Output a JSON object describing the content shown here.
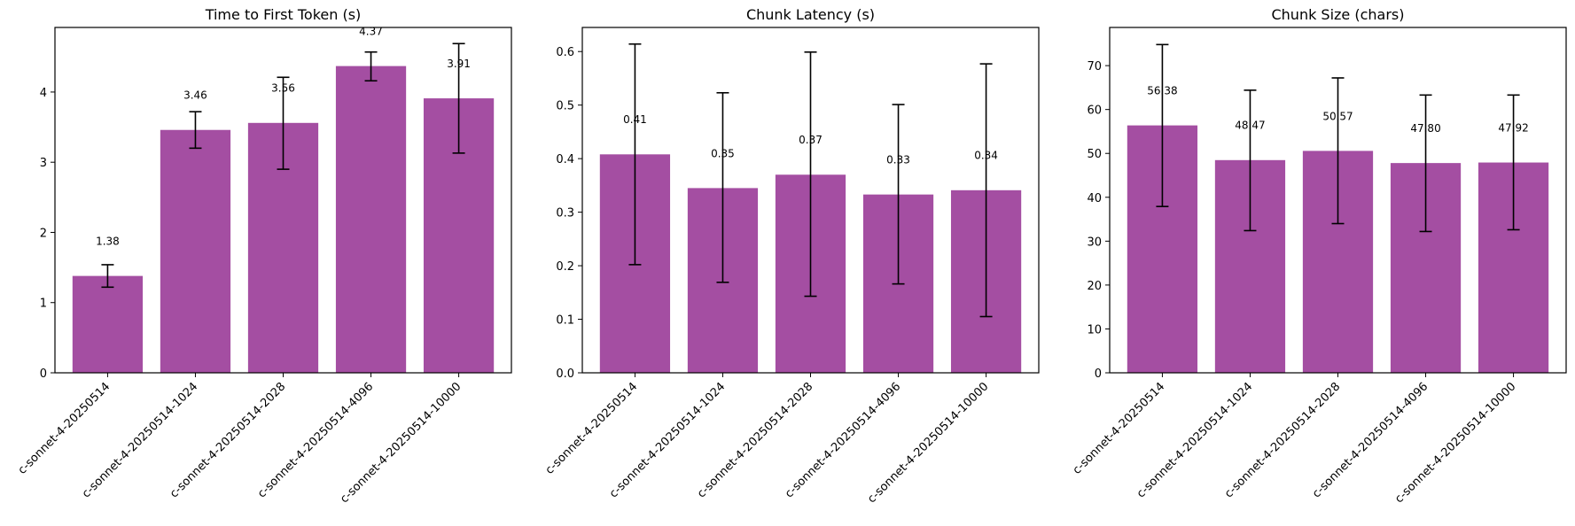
{
  "figure": {
    "bar_color": "#A44EA2",
    "error_color": "#000000"
  },
  "chart_data": [
    {
      "type": "bar",
      "title": "Time to First Token (s)",
      "xlabel": "",
      "ylabel": "",
      "categories": [
        "c-sonnet-4-20250514",
        "c-sonnet-4-20250514-1024",
        "c-sonnet-4-20250514-2028",
        "c-sonnet-4-20250514-4096",
        "c-sonnet-4-20250514-10000"
      ],
      "values": [
        1.38,
        3.46,
        3.56,
        4.37,
        3.91
      ],
      "value_labels": [
        "1.38",
        "3.46",
        "3.56",
        "4.37",
        "3.91"
      ],
      "error_low": [
        1.22,
        3.2,
        2.9,
        4.16,
        3.13
      ],
      "error_high": [
        1.54,
        3.72,
        4.21,
        4.57,
        4.69
      ],
      "ylim": [
        0,
        4.92
      ],
      "yticks": [
        0,
        1,
        2,
        3,
        4
      ],
      "ytick_labels": [
        "0",
        "1",
        "2",
        "3",
        "4"
      ],
      "grid": false,
      "legend": null
    },
    {
      "type": "bar",
      "title": "Chunk Latency (s)",
      "xlabel": "",
      "ylabel": "",
      "categories": [
        "c-sonnet-4-20250514",
        "c-sonnet-4-20250514-1024",
        "c-sonnet-4-20250514-2028",
        "c-sonnet-4-20250514-4096",
        "c-sonnet-4-20250514-10000"
      ],
      "values": [
        0.408,
        0.345,
        0.37,
        0.333,
        0.341
      ],
      "value_labels": [
        "0.41",
        "0.35",
        "0.37",
        "0.33",
        "0.34"
      ],
      "error_low": [
        0.202,
        0.169,
        0.143,
        0.166,
        0.105
      ],
      "error_high": [
        0.614,
        0.523,
        0.599,
        0.501,
        0.577
      ],
      "ylim": [
        0,
        0.645
      ],
      "yticks": [
        0,
        0.1,
        0.2,
        0.3,
        0.4,
        0.5,
        0.6
      ],
      "ytick_labels": [
        "0.0",
        "0.1",
        "0.2",
        "0.3",
        "0.4",
        "0.5",
        "0.6"
      ],
      "grid": false,
      "legend": null
    },
    {
      "type": "bar",
      "title": "Chunk Size (chars)",
      "xlabel": "",
      "ylabel": "",
      "categories": [
        "c-sonnet-4-20250514",
        "c-sonnet-4-20250514-1024",
        "c-sonnet-4-20250514-2028",
        "c-sonnet-4-20250514-4096",
        "c-sonnet-4-20250514-10000"
      ],
      "values": [
        56.38,
        48.47,
        50.57,
        47.8,
        47.92
      ],
      "value_labels": [
        "56.38",
        "48.47",
        "50.57",
        "47.80",
        "47.92"
      ],
      "error_low": [
        37.9,
        32.4,
        34.0,
        32.2,
        32.6
      ],
      "error_high": [
        74.8,
        64.4,
        67.2,
        63.3,
        63.3
      ],
      "ylim": [
        0,
        78.7
      ],
      "yticks": [
        0,
        10,
        20,
        30,
        40,
        50,
        60,
        70
      ],
      "ytick_labels": [
        "0",
        "10",
        "20",
        "30",
        "40",
        "50",
        "60",
        "70"
      ],
      "grid": false,
      "legend": null
    }
  ]
}
